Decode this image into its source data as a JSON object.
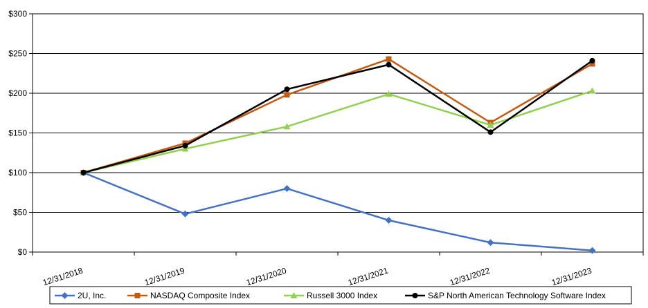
{
  "chart_data": {
    "type": "line",
    "title": "",
    "xlabel": "",
    "ylabel": "",
    "categories": [
      "12/31/2018",
      "12/31/2019",
      "12/31/2020",
      "12/31/2021",
      "12/31/2022",
      "12/31/2023"
    ],
    "ylim": [
      0,
      300
    ],
    "y_ticks": [
      "$0",
      "$50",
      "$100",
      "$150",
      "$200",
      "$250",
      "$300"
    ],
    "grid": "horizontal",
    "legend_position": "bottom",
    "series": [
      {
        "name": "2U, Inc.",
        "marker": "diamond",
        "color": "#4472C4",
        "values": [
          100,
          48,
          80,
          40,
          12,
          2
        ]
      },
      {
        "name": "NASDAQ Composite Index",
        "marker": "square",
        "color": "#C55A11",
        "values": [
          100,
          137,
          198,
          243,
          163,
          237
        ]
      },
      {
        "name": "Russell 3000 Index",
        "marker": "triangle",
        "color": "#92D050",
        "values": [
          100,
          130,
          158,
          199,
          160,
          203
        ]
      },
      {
        "name": "S&P North American Technology Software Index",
        "marker": "circle",
        "color": "#000000",
        "values": [
          100,
          134,
          205,
          236,
          151,
          241
        ]
      }
    ]
  }
}
